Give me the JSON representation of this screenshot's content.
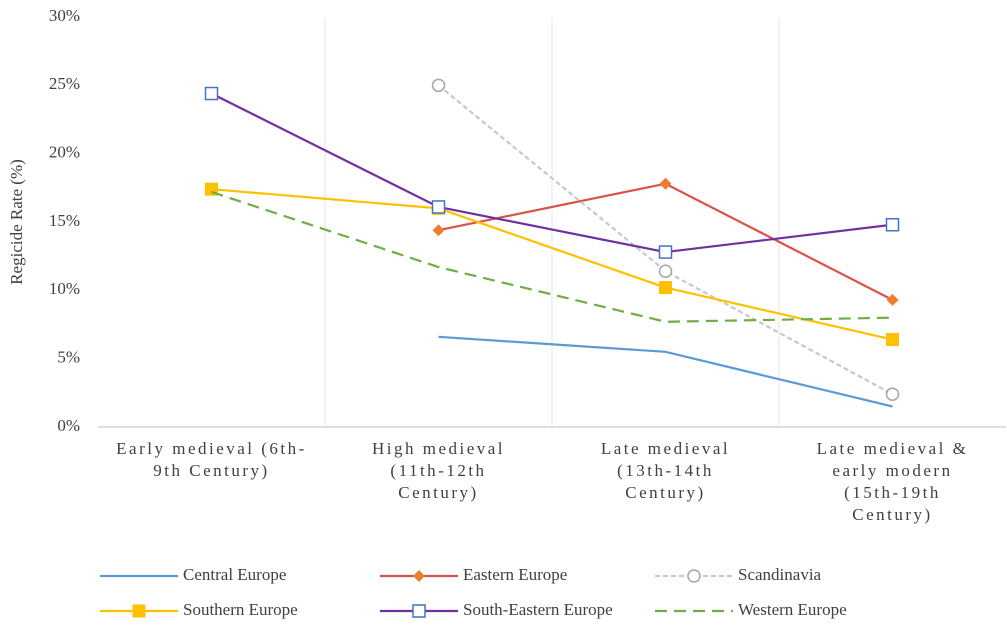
{
  "chart_data": {
    "type": "line",
    "y_label": "Regicide Rate (%)",
    "categories": [
      "Early medieval (6th-9th Century)",
      "High medieval (11th-12th Century)",
      "Late medieval (13th-14th Century)",
      "Late medieval & early modern (15th-19th Century)"
    ],
    "series": [
      {
        "name": "Central Europe",
        "color": "#5b9bd5",
        "marker": "none",
        "dashed": false,
        "values": [
          null,
          6.6,
          5.5,
          1.5
        ]
      },
      {
        "name": "Eastern Europe",
        "color": "#d9534a",
        "marker": "diamond",
        "marker_color": "#ed7d31",
        "dashed": false,
        "values": [
          null,
          14.4,
          17.8,
          9.3
        ]
      },
      {
        "name": "Scandinavia",
        "color": "#c8c8c8",
        "marker": "open-circle",
        "marker_color": "#a5a5a5",
        "dashed": true,
        "values": [
          null,
          25.0,
          11.4,
          2.4
        ]
      },
      {
        "name": "Southern Europe",
        "color": "#ffc000",
        "marker": "square",
        "marker_color": "#ffc000",
        "dashed": false,
        "values": [
          17.4,
          16.0,
          10.2,
          6.4
        ]
      },
      {
        "name": "South-Eastern Europe",
        "color": "#7030a0",
        "marker": "open-square",
        "marker_color": "#4472c4",
        "dashed": false,
        "values": [
          24.4,
          16.1,
          12.8,
          14.8
        ]
      },
      {
        "name": "Western Europe",
        "color": "#70ad47",
        "marker": "none",
        "dashed": true,
        "values": [
          17.2,
          11.7,
          7.7,
          8.0
        ]
      }
    ],
    "ylim": [
      0,
      30
    ],
    "yticks": [
      {
        "value": 0,
        "label": "0%"
      },
      {
        "value": 5,
        "label": "5%"
      },
      {
        "value": 10,
        "label": "10%"
      },
      {
        "value": 15,
        "label": "15%"
      },
      {
        "value": 20,
        "label": "20%"
      },
      {
        "value": 25,
        "label": "25%"
      },
      {
        "value": 30,
        "label": "30%"
      }
    ],
    "grid": true
  }
}
